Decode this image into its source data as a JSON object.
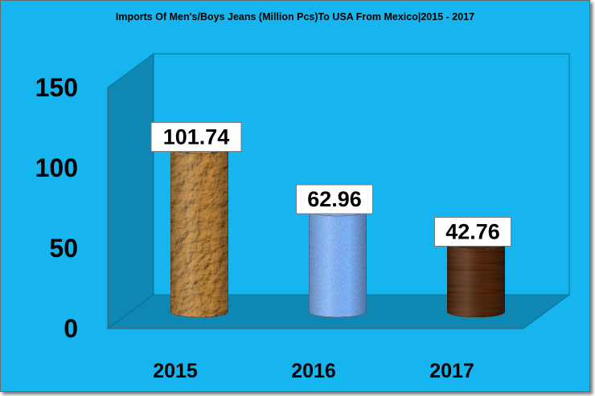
{
  "chart_data": {
    "type": "bar",
    "title": "Imports Of Men's/Boys Jeans (Million Pcs)To USA From Mexico|2015 - 2017",
    "categories": [
      "2015",
      "2016",
      "2017"
    ],
    "values": [
      101.74,
      62.96,
      42.76
    ],
    "value_labels": [
      "101.74",
      "62.96",
      "42.76"
    ],
    "ylim": [
      0,
      150
    ],
    "yticks": [
      0,
      50,
      100,
      150
    ],
    "ytick_labels": [
      "0",
      "50",
      "100",
      "150"
    ],
    "grid": false,
    "legend": "none",
    "bar_shape": "3d-cylinder",
    "bar_textures": [
      "crumpled-paper",
      "denim",
      "wood-grain"
    ],
    "colors": {
      "background": "#17b5ef",
      "walls": "#0f87b3",
      "bar_2015": "#d2a868",
      "bar_2016": "#7e9fd9",
      "bar_2017": "#6b4527",
      "label_box": "#ffffff",
      "text": "#000000"
    }
  }
}
